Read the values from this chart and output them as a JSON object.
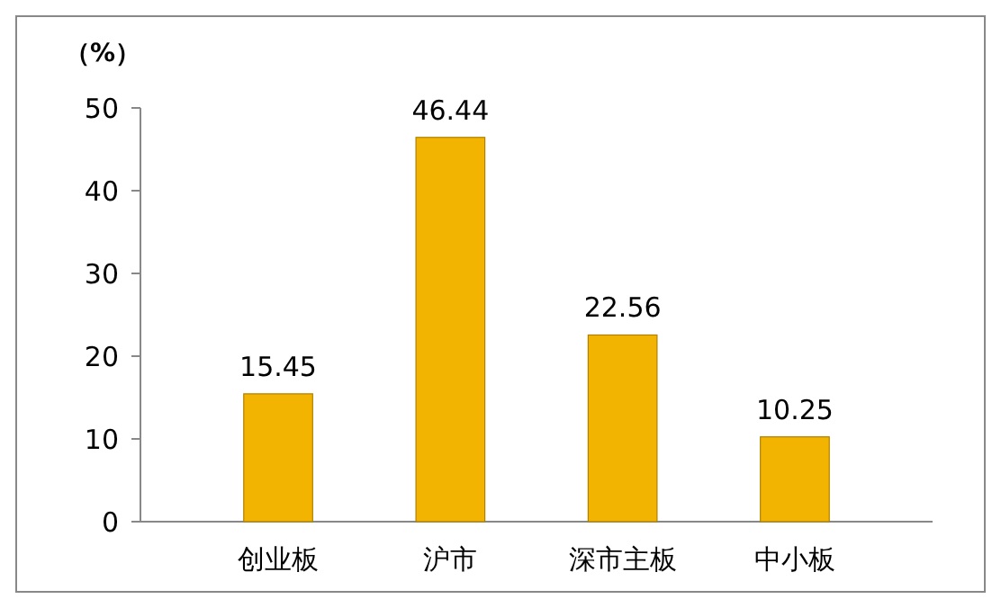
{
  "chart_data": {
    "type": "bar",
    "ylabel": "（%）",
    "categories": [
      "创业板",
      "沪市",
      "深市主板",
      "中小板"
    ],
    "values": [
      15.45,
      46.44,
      22.56,
      10.25
    ],
    "color": "#f2b400",
    "ylim": [
      0,
      50
    ],
    "yticks": [
      0,
      10,
      20,
      30,
      40,
      50
    ],
    "data_labels": true,
    "grid": false
  }
}
